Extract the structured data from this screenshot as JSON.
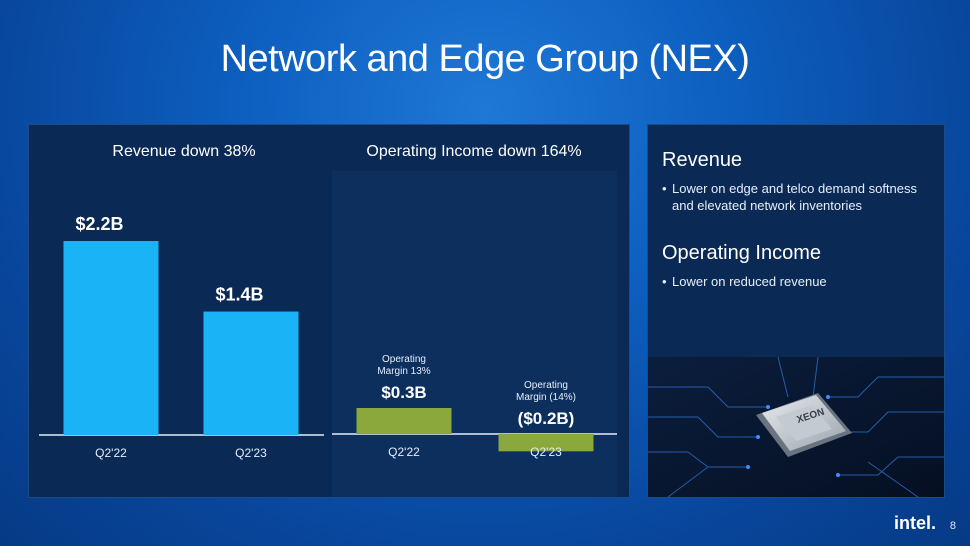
{
  "slide": {
    "title": "Network and Edge Group (NEX)",
    "page_number": "8",
    "brand": "intel."
  },
  "chart_data": [
    {
      "type": "bar",
      "title": "Revenue down 38%",
      "categories": [
        "Q2'22",
        "Q2'23"
      ],
      "values": [
        2.2,
        1.4
      ],
      "data_labels": [
        "$2.2B",
        "$1.4B"
      ],
      "ylim": [
        0,
        2.5
      ],
      "color": "#1ab3f5",
      "grid": false
    },
    {
      "type": "bar",
      "title": "Operating Income down 164%",
      "categories": [
        "Q2'22",
        "Q2'23"
      ],
      "values": [
        0.3,
        -0.2
      ],
      "data_labels": [
        "$0.3B",
        "($0.2B)"
      ],
      "annotations": [
        "Operating Margin 13%",
        "Operating Margin (14%)"
      ],
      "ylim": [
        -0.3,
        2.2
      ],
      "color": "#8aa83c",
      "grid": false
    }
  ],
  "sidebar": {
    "sections": [
      {
        "heading": "Revenue",
        "bullets": [
          "Lower on edge and telco demand softness and elevated network inventories"
        ]
      },
      {
        "heading": "Operating Income",
        "bullets": [
          "Lower on reduced revenue"
        ]
      }
    ],
    "image_label": "XEON"
  }
}
